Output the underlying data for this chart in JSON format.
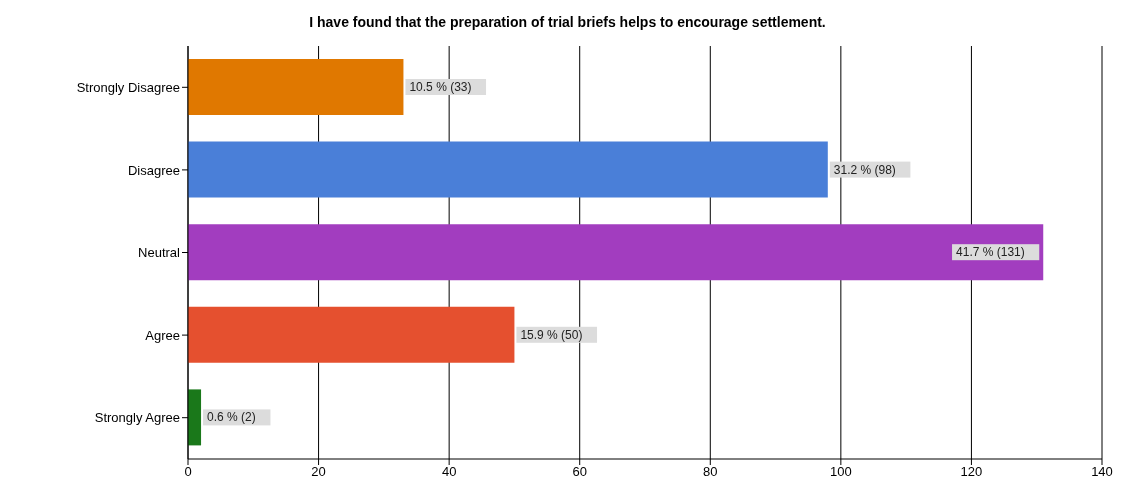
{
  "chart_data": {
    "type": "bar",
    "orientation": "horizontal",
    "title": "I have found that the preparation of trial briefs helps to encourage settlement.",
    "categories": [
      "Strongly Disagree",
      "Disagree",
      "Neutral",
      "Agree",
      "Strongly Agree"
    ],
    "values": [
      33,
      98,
      131,
      50,
      2
    ],
    "colors": [
      "#e07800",
      "#4a7fd8",
      "#a23dbf",
      "#e5502f",
      "#1a781a"
    ],
    "value_labels": [
      "10.5 % (33)",
      "31.2 % (98)",
      "41.7 % (131)",
      "15.9 % (50)",
      "0.6 % (2)"
    ],
    "xlim": [
      0,
      140
    ],
    "xticks": [
      0,
      20,
      40,
      60,
      80,
      100,
      120,
      140
    ],
    "grid": "x"
  }
}
